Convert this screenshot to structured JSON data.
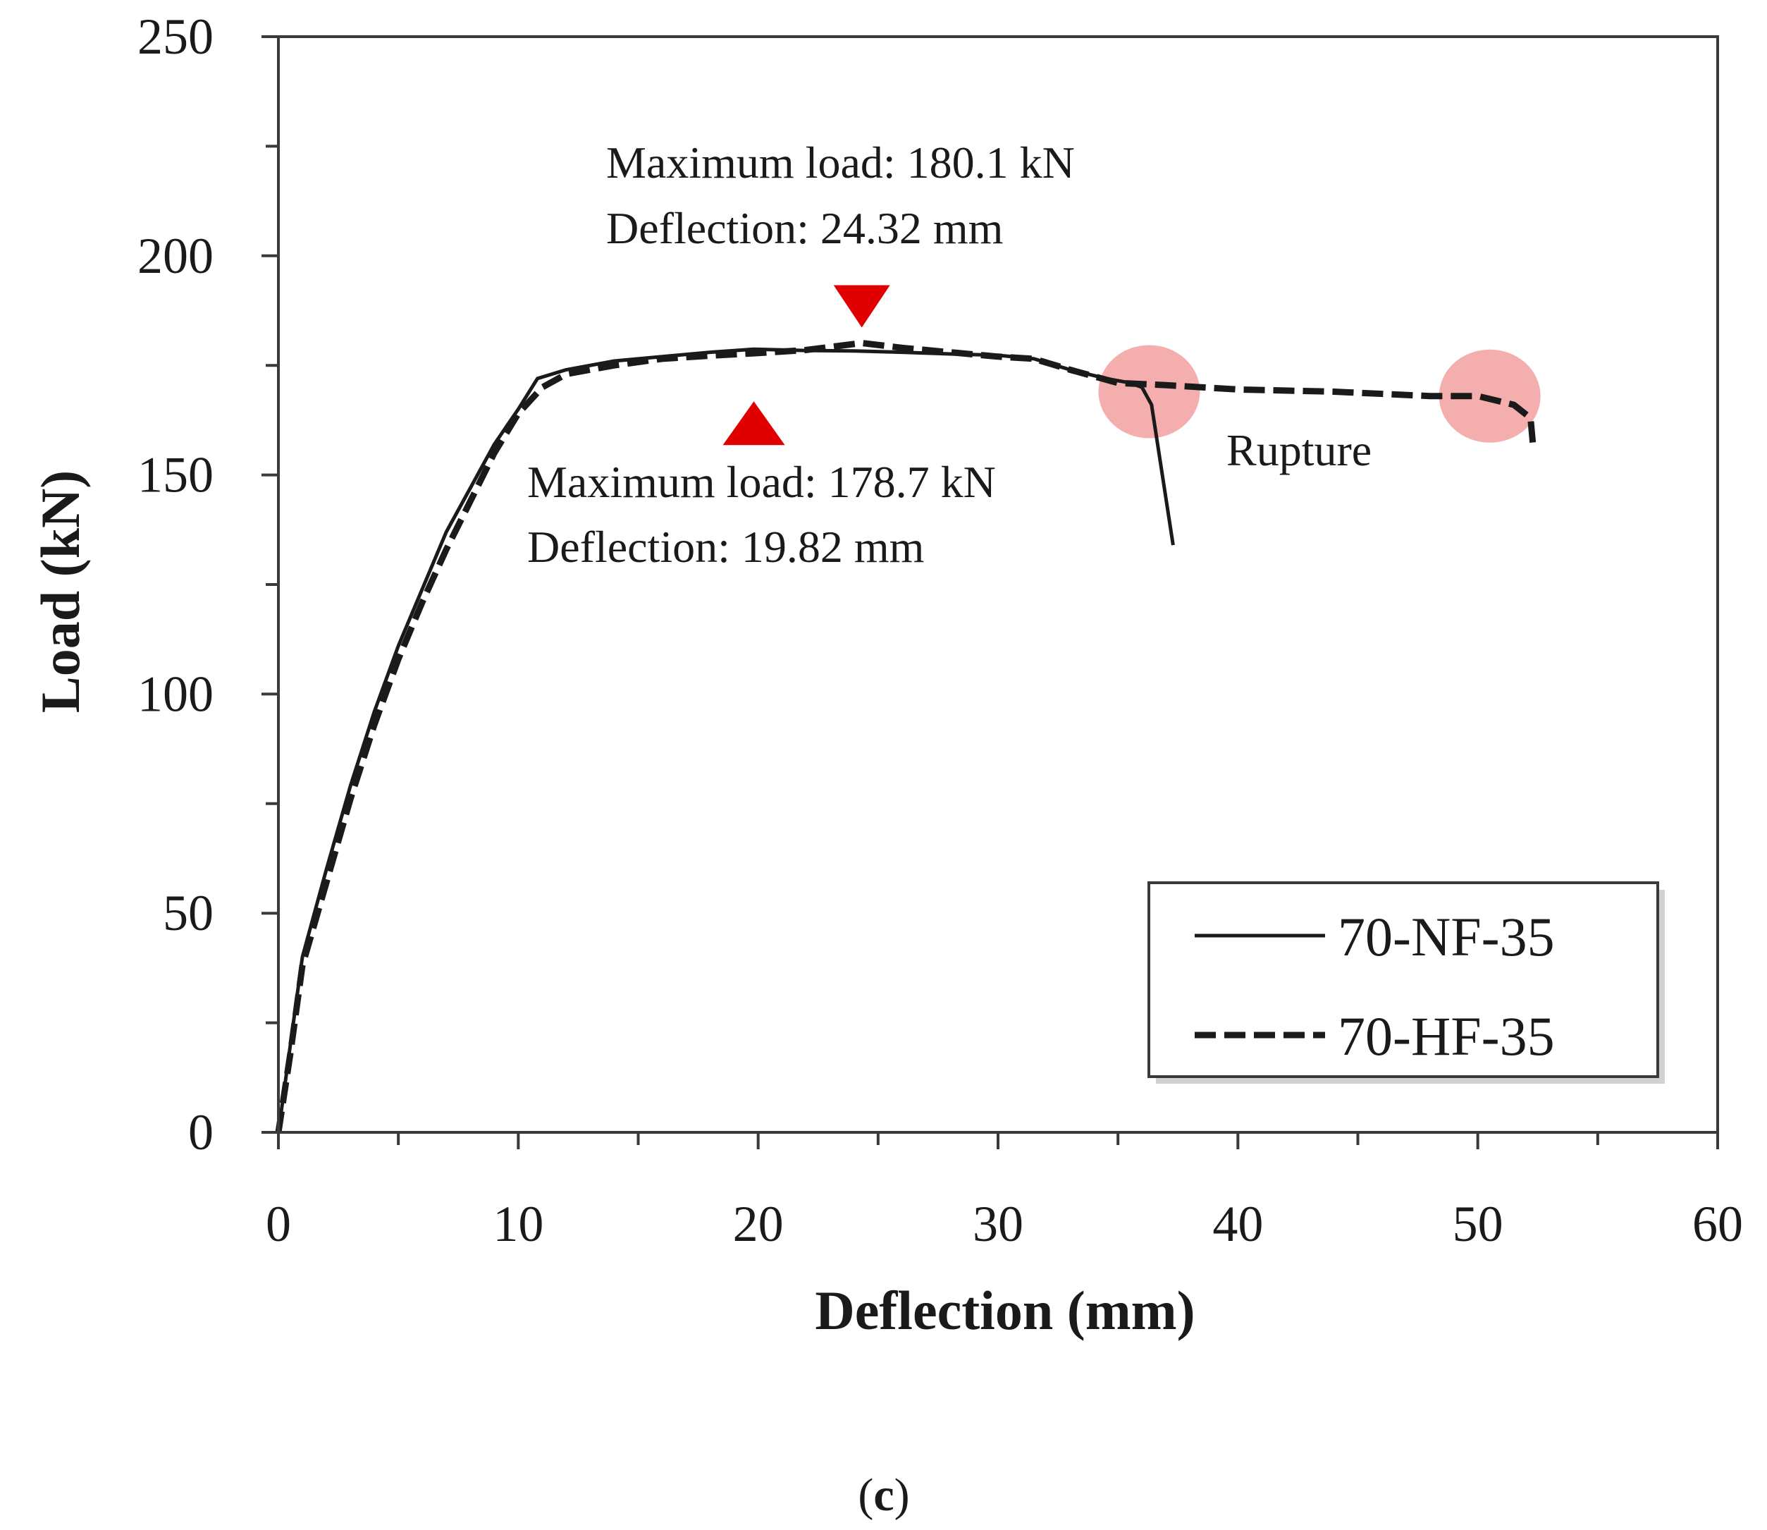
{
  "chart_data": {
    "type": "line",
    "title": "",
    "xlabel": "Deflection (mm)",
    "ylabel": "Load (kN)",
    "xlim": [
      0,
      60
    ],
    "ylim": [
      0,
      250
    ],
    "x_ticks": [
      0,
      10,
      20,
      30,
      40,
      50,
      60
    ],
    "y_ticks": [
      0,
      50,
      100,
      150,
      200,
      250
    ],
    "x_tick_labels": [
      "0",
      "10",
      "20",
      "30",
      "40",
      "50",
      "60"
    ],
    "y_tick_labels": [
      "0",
      "50",
      "100",
      "150",
      "200",
      "250"
    ],
    "grid": false,
    "legend_position": "bottom-right",
    "series": [
      {
        "name": "70-NF-35",
        "style": "solid",
        "color": "#1a1a1a",
        "x": [
          0,
          0.5,
          1,
          2,
          3,
          4,
          5,
          6,
          7,
          8,
          9,
          10,
          10.8,
          12,
          14,
          16,
          18,
          19.82,
          22,
          24,
          26,
          28,
          30,
          31.5,
          33,
          34.5,
          35.5,
          36,
          36.4,
          37.3
        ],
        "y": [
          0,
          20,
          40,
          60,
          79,
          96,
          111,
          124,
          137,
          147,
          157,
          165,
          172,
          174,
          176,
          177,
          178,
          178.7,
          178.4,
          178.3,
          178,
          177.6,
          177.3,
          176.5,
          174,
          172,
          171,
          170,
          166,
          134
        ]
      },
      {
        "name": "70-HF-35",
        "style": "dashed",
        "color": "#1a1a1a",
        "x": [
          0,
          0.5,
          1,
          2,
          3,
          4,
          5,
          6,
          7,
          8,
          9,
          10,
          11,
          12,
          14,
          16,
          18,
          20,
          22,
          24.32,
          26,
          28,
          30,
          31.5,
          33,
          35,
          37,
          40,
          44,
          48,
          50,
          51.5,
          52.2,
          52.3
        ],
        "y": [
          0,
          18,
          38,
          57,
          76,
          93,
          108,
          121,
          133,
          144,
          155,
          164,
          170,
          173,
          175,
          176.5,
          177.2,
          177.8,
          178.5,
          180.1,
          179,
          178,
          177,
          176.5,
          174,
          171,
          170.5,
          169.5,
          169,
          168,
          168,
          166,
          163,
          157
        ]
      }
    ],
    "annotations": [
      {
        "line1": "Maximum load: 180.1 kN",
        "line2": "Deflection: 24.32 mm",
        "marker": "down-triangle",
        "x": 24.32,
        "y": 180.1,
        "color": "#e00000"
      },
      {
        "line1": "Maximum load: 178.7 kN",
        "line2": "Deflection: 19.82 mm",
        "marker": "up-triangle",
        "x": 19.82,
        "y": 178.7,
        "color": "#e00000"
      }
    ],
    "rupture_label": "Rupture",
    "rupture_points": [
      {
        "x": 36.3,
        "y": 169
      },
      {
        "x": 50.5,
        "y": 168
      }
    ],
    "rupture_color": "#f2a0a0"
  },
  "caption": {
    "open": "(",
    "letter": "c",
    "close": ")"
  }
}
